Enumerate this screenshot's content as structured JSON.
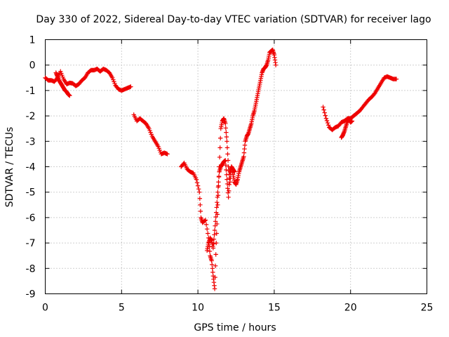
{
  "chart_data": {
    "type": "scatter",
    "title": "Day 330 of 2022, Sidereal Day-to-day VTEC variation (SDTVAR) for receiver lago",
    "xlabel": "GPS time / hours",
    "ylabel": "SDTVAR / TECUs",
    "xlim": [
      0,
      25
    ],
    "ylim": [
      -9,
      1
    ],
    "xticks": [
      0,
      5,
      10,
      15,
      20,
      25
    ],
    "yticks": [
      1,
      0,
      -1,
      -2,
      -3,
      -4,
      -5,
      -6,
      -7,
      -8,
      -9
    ],
    "grid": true,
    "marker": "plus",
    "color": "#ee0000",
    "series": [
      {
        "name": "segment-1",
        "x": [
          0.0,
          0.2,
          0.4,
          0.6,
          0.8,
          1.0,
          1.2,
          1.4,
          1.6,
          1.8,
          2.0,
          2.2,
          2.4,
          2.6,
          2.8,
          3.0,
          3.2,
          3.4,
          3.6,
          3.8,
          4.0,
          4.2,
          4.4,
          4.6,
          4.8,
          5.0,
          5.2,
          5.4,
          5.6
        ],
        "y": [
          -0.5,
          -0.6,
          -0.6,
          -0.65,
          -0.5,
          -0.25,
          -0.55,
          -0.75,
          -0.7,
          -0.72,
          -0.82,
          -0.75,
          -0.6,
          -0.5,
          -0.3,
          -0.2,
          -0.2,
          -0.15,
          -0.25,
          -0.15,
          -0.2,
          -0.3,
          -0.5,
          -0.8,
          -0.95,
          -1.0,
          -0.95,
          -0.9,
          -0.85
        ]
      },
      {
        "name": "segment-1-branch",
        "x": [
          0.7,
          0.8,
          0.9,
          1.0,
          1.1,
          1.2,
          1.3,
          1.4,
          1.5,
          1.6
        ],
        "y": [
          -0.3,
          -0.45,
          -0.6,
          -0.7,
          -0.8,
          -0.9,
          -1.0,
          -1.05,
          -1.15,
          -1.2
        ]
      },
      {
        "name": "segment-2",
        "x": [
          5.8,
          6.0,
          6.2,
          6.4,
          6.6,
          6.8,
          7.0,
          7.2,
          7.4,
          7.6,
          7.8,
          8.0
        ],
        "y": [
          -1.95,
          -2.2,
          -2.1,
          -2.2,
          -2.3,
          -2.5,
          -2.8,
          -3.0,
          -3.2,
          -3.5,
          -3.45,
          -3.5
        ]
      },
      {
        "name": "segment-3",
        "x": [
          8.9,
          9.1,
          9.3,
          9.5,
          9.7,
          9.9,
          10.1,
          10.2,
          10.3,
          10.5,
          10.7,
          10.8,
          10.9,
          11.0,
          11.1,
          11.2,
          11.3,
          11.4,
          11.5,
          11.6,
          11.7,
          11.8,
          11.9,
          12.0,
          12.1,
          12.2,
          12.3,
          12.4,
          12.5,
          12.6,
          12.7,
          12.8,
          12.9,
          13.0,
          13.1,
          13.2,
          13.3,
          13.4,
          13.5,
          13.6,
          13.7,
          13.8,
          13.9,
          14.0,
          14.1,
          14.2,
          14.3,
          14.4,
          14.5,
          14.6,
          14.7,
          14.8,
          14.9,
          15.0,
          15.1
        ],
        "y": [
          -4.0,
          -3.85,
          -4.1,
          -4.2,
          -4.25,
          -4.5,
          -5.0,
          -6.0,
          -6.2,
          -6.1,
          -6.8,
          -7.5,
          -7.7,
          -8.3,
          -8.8,
          -7.0,
          -5.5,
          -4.0,
          -2.5,
          -2.2,
          -2.1,
          -2.3,
          -3.0,
          -4.0,
          -4.6,
          -4.0,
          -4.3,
          -4.6,
          -4.7,
          -4.5,
          -4.2,
          -4.0,
          -3.8,
          -3.6,
          -3.0,
          -2.8,
          -2.7,
          -2.5,
          -2.3,
          -2.0,
          -1.8,
          -1.5,
          -1.2,
          -0.9,
          -0.6,
          -0.3,
          -0.15,
          -0.1,
          0.0,
          0.2,
          0.5,
          0.55,
          0.6,
          0.4,
          0.0
        ]
      },
      {
        "name": "segment-3-branch",
        "x": [
          10.6,
          10.7,
          10.8,
          10.9,
          11.0,
          11.1,
          11.2,
          11.3,
          11.4,
          11.5,
          11.6,
          11.7,
          11.8,
          11.9,
          12.0,
          12.1,
          12.2,
          12.3,
          12.4
        ],
        "y": [
          -7.3,
          -7.0,
          -6.8,
          -6.9,
          -7.2,
          -6.5,
          -5.8,
          -5.0,
          -4.2,
          -4.0,
          -3.9,
          -3.8,
          -3.75,
          -4.5,
          -5.2,
          -4.2,
          -4.0,
          -4.1,
          -4.2
        ]
      },
      {
        "name": "segment-4",
        "x": [
          18.2,
          18.4,
          18.6,
          18.8,
          19.0,
          19.2,
          19.4,
          19.6,
          19.8,
          20.0,
          20.2,
          20.4,
          20.6,
          20.8,
          21.0,
          21.2,
          21.4,
          21.6,
          21.8,
          22.0,
          22.2,
          22.4,
          22.6,
          22.8,
          23.0
        ],
        "y": [
          -1.65,
          -2.1,
          -2.45,
          -2.55,
          -2.45,
          -2.4,
          -2.25,
          -2.2,
          -2.1,
          -2.1,
          -2.0,
          -1.9,
          -1.8,
          -1.65,
          -1.5,
          -1.35,
          -1.25,
          -1.1,
          -0.9,
          -0.7,
          -0.5,
          -0.45,
          -0.5,
          -0.55,
          -0.55
        ]
      },
      {
        "name": "segment-4-branch",
        "x": [
          19.4,
          19.5,
          19.6,
          19.7,
          19.8,
          19.9,
          20.0,
          20.1
        ],
        "y": [
          -2.85,
          -2.75,
          -2.6,
          -2.4,
          -2.2,
          -2.15,
          -2.25,
          -2.2
        ]
      }
    ]
  }
}
